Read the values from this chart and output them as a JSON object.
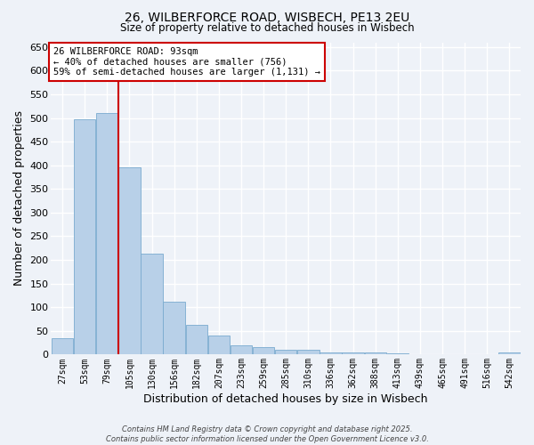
{
  "title": "26, WILBERFORCE ROAD, WISBECH, PE13 2EU",
  "subtitle": "Size of property relative to detached houses in Wisbech",
  "xlabel": "Distribution of detached houses by size in Wisbech",
  "ylabel": "Number of detached properties",
  "categories": [
    "27sqm",
    "53sqm",
    "79sqm",
    "105sqm",
    "130sqm",
    "156sqm",
    "182sqm",
    "207sqm",
    "233sqm",
    "259sqm",
    "285sqm",
    "310sqm",
    "336sqm",
    "362sqm",
    "388sqm",
    "413sqm",
    "439sqm",
    "465sqm",
    "491sqm",
    "516sqm",
    "542sqm"
  ],
  "values": [
    35,
    497,
    510,
    395,
    213,
    112,
    62,
    40,
    20,
    15,
    11,
    10,
    4,
    4,
    4,
    3,
    1,
    1,
    1,
    1,
    5
  ],
  "bar_color": "#b8d0e8",
  "bar_edgecolor": "#7aabcf",
  "property_line_x": 2.5,
  "property_line_color": "#cc0000",
  "ylim": [
    0,
    660
  ],
  "yticks": [
    0,
    50,
    100,
    150,
    200,
    250,
    300,
    350,
    400,
    450,
    500,
    550,
    600,
    650
  ],
  "annotation_text": "26 WILBERFORCE ROAD: 93sqm\n← 40% of detached houses are smaller (756)\n59% of semi-detached houses are larger (1,131) →",
  "annotation_box_color": "#ffffff",
  "annotation_box_edgecolor": "#cc0000",
  "footer_line1": "Contains HM Land Registry data © Crown copyright and database right 2025.",
  "footer_line2": "Contains public sector information licensed under the Open Government Licence v3.0.",
  "bg_color": "#eef2f8",
  "plot_bg_color": "#eef2f8",
  "grid_color": "#ffffff",
  "figsize": [
    6.0,
    5.0
  ],
  "dpi": 100
}
